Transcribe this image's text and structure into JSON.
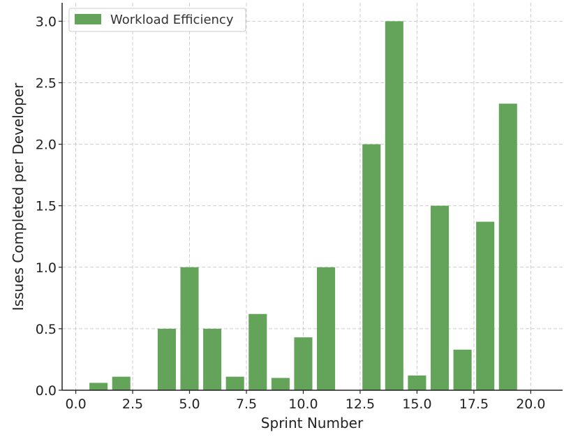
{
  "chart_data": {
    "type": "bar",
    "xlabel": "Sprint Number",
    "ylabel": "Issues Completed per Developer",
    "xlim": [
      -0.6,
      21.4
    ],
    "ylim": [
      0,
      3.15
    ],
    "xticks": [
      0.0,
      2.5,
      5.0,
      7.5,
      10.0,
      12.5,
      15.0,
      17.5,
      20.0
    ],
    "xtick_labels": [
      "0.0",
      "2.5",
      "5.0",
      "7.5",
      "10.0",
      "12.5",
      "15.0",
      "17.5",
      "20.0"
    ],
    "yticks": [
      0.0,
      0.5,
      1.0,
      1.5,
      2.0,
      2.5,
      3.0
    ],
    "ytick_labels": [
      "0.0",
      "0.5",
      "1.0",
      "1.5",
      "2.0",
      "2.5",
      "3.0"
    ],
    "grid": true,
    "legend_position": "top-left",
    "series": [
      {
        "name": "Workload Efficiency",
        "color": "#64a45a",
        "x": [
          1,
          2,
          3,
          4,
          5,
          6,
          7,
          8,
          9,
          10,
          11,
          12,
          13,
          14,
          15,
          16,
          17,
          18,
          19,
          20
        ],
        "values": [
          0.06,
          0.11,
          0,
          0.5,
          1.0,
          0.5,
          0.11,
          0.62,
          0.1,
          0.43,
          1.0,
          0,
          2.0,
          3.0,
          0.12,
          1.5,
          0.33,
          1.37,
          2.33,
          0
        ]
      }
    ]
  }
}
